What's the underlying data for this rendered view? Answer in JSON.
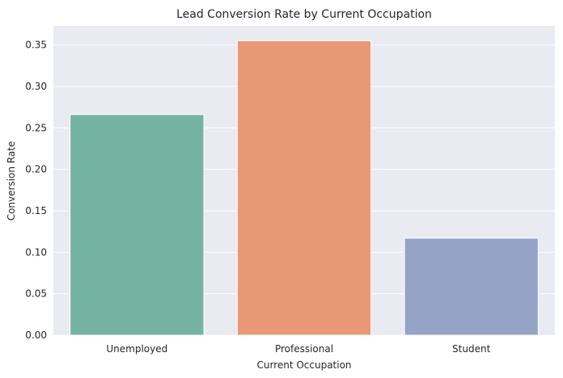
{
  "chart_data": {
    "type": "bar",
    "title": "Lead Conversion Rate by Current Occupation",
    "xlabel": "Current Occupation",
    "ylabel": "Conversion Rate",
    "categories": [
      "Unemployed",
      "Professional",
      "Student"
    ],
    "values": [
      0.266,
      0.355,
      0.117
    ],
    "colors": [
      "#73b3a0",
      "#e99875",
      "#95a4c6"
    ],
    "ylim": [
      0,
      0.373
    ],
    "yticks": [
      "0.00",
      "0.05",
      "0.10",
      "0.15",
      "0.20",
      "0.25",
      "0.30",
      "0.35"
    ],
    "grid": true,
    "background": "#eaeaf2"
  }
}
